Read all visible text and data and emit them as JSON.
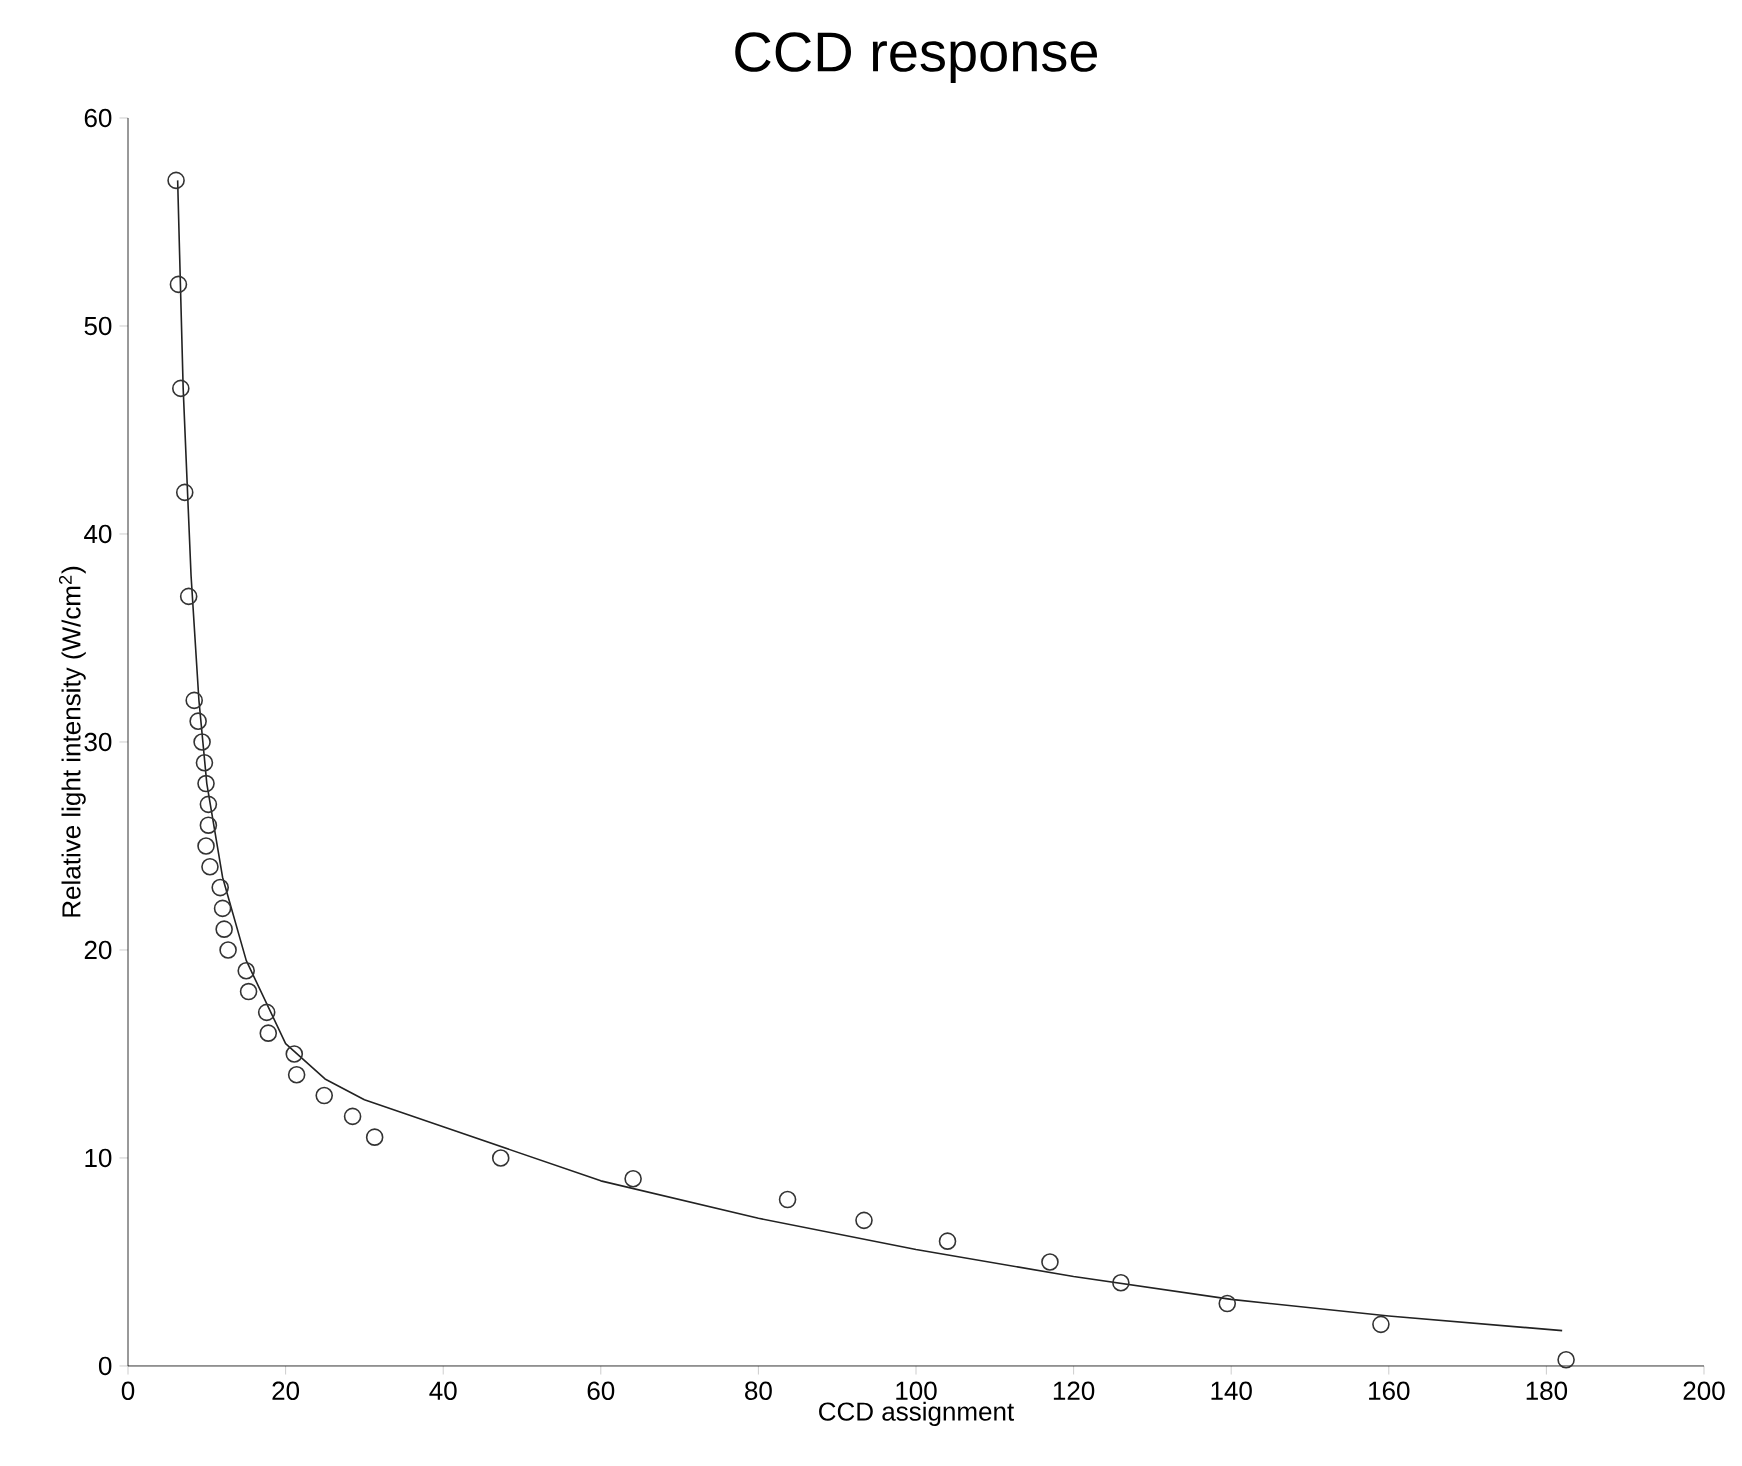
{
  "chart_data": {
    "type": "scatter",
    "title": "CCD response",
    "xlabel": "CCD assignment",
    "ylabel": "Relative light intensity (W/cm$^{2}$)",
    "xlim": [
      0,
      200
    ],
    "ylim": [
      0,
      60
    ],
    "xticks": [
      0,
      20,
      40,
      60,
      80,
      100,
      120,
      140,
      160,
      180,
      200
    ],
    "yticks": [
      0,
      10,
      20,
      30,
      40,
      50,
      60
    ],
    "series": [
      {
        "type": "scatter",
        "marker": "circle",
        "color": "#333333",
        "x": [
          6.1,
          6.4,
          6.7,
          7.2,
          7.7,
          8.4,
          8.9,
          9.4,
          9.7,
          9.9,
          10.2,
          10.2,
          9.9,
          10.4,
          11.7,
          12,
          12.2,
          12.7,
          15,
          15.3,
          17.6,
          17.8,
          21.1,
          21.4,
          24.9,
          28.5,
          31.3,
          47.3,
          64.1,
          83.7,
          93.4,
          104,
          117,
          126,
          139.5,
          159,
          182.5
        ],
        "values": [
          57,
          52,
          47,
          42,
          37,
          32,
          31,
          30,
          29,
          28,
          27,
          26,
          25,
          24,
          23,
          22,
          21,
          20,
          19,
          18,
          17,
          16,
          15,
          14,
          13,
          12,
          11,
          10,
          9,
          8,
          7,
          6,
          5,
          4,
          3,
          2,
          0.3
        ]
      },
      {
        "type": "line",
        "marker": "none",
        "line_style": "solid",
        "color": "#222222",
        "x": [
          6.3,
          7,
          8,
          9,
          10,
          12,
          15,
          20,
          25,
          30,
          40,
          60,
          80,
          100,
          120,
          140,
          160,
          182
        ],
        "values": [
          57,
          47,
          38,
          32,
          28,
          23.5,
          19.5,
          15.5,
          13.8,
          12.8,
          11.5,
          8.9,
          7.1,
          5.6,
          4.3,
          3.2,
          2.4,
          1.7
        ]
      }
    ]
  }
}
